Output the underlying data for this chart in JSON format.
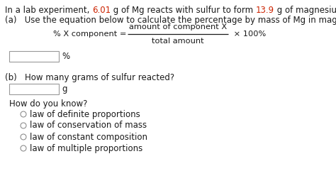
{
  "bg_color": "#ffffff",
  "text_color": "#1a1a1a",
  "highlight_color": "#cc2200",
  "line1_parts": [
    "In a lab experiment, ",
    "6.01",
    " g of Mg reacts with sulfur to form ",
    "13.9",
    " g of magnesium sulfide."
  ],
  "line2": "(a)   Use the equation below to calculate the percentage by mass of Mg in magnesium sulfide.",
  "formula_left": "% X component = ",
  "formula_numerator": "amount of component X",
  "formula_denominator": "total amount",
  "formula_right": " × 100%",
  "answer_box_a_label": "%",
  "part_b": "(b)   How many grams of sulfur reacted?",
  "answer_box_b_label": "g",
  "how_do_you_know": "How do you know?",
  "options": [
    "law of definite proportions",
    "law of conservation of mass",
    "law of constant composition",
    "law of multiple proportions"
  ],
  "fig_width": 4.74,
  "fig_height": 2.65,
  "dpi": 100
}
